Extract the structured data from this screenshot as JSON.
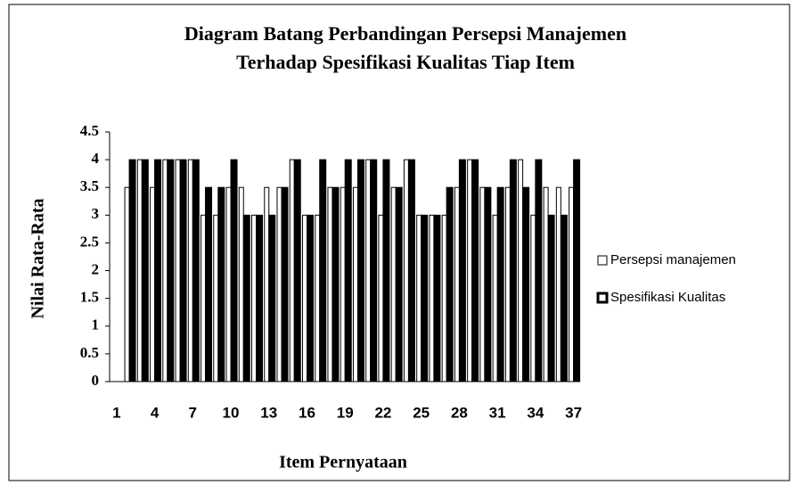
{
  "chart_data": {
    "type": "bar",
    "title": [
      "Diagram Batang Perbandingan Persepsi Manajemen",
      "Terhadap Spesifikasi Kualitas Tiap Item"
    ],
    "y_label": "Nilai Rata-Rata",
    "x_label": "Item Pernyataan",
    "categories": [
      "1",
      null,
      null,
      "4",
      null,
      null,
      "7",
      null,
      null,
      "10",
      null,
      null,
      "13",
      null,
      null,
      "16",
      null,
      null,
      "19",
      null,
      null,
      "22",
      null,
      null,
      "25",
      null,
      null,
      "28",
      null,
      null,
      "31",
      null,
      null,
      "34",
      null,
      null,
      "37"
    ],
    "series": [
      {
        "name": "Persepsi manajemen",
        "color": "#ffffff",
        "values": [
          null,
          3.5,
          4,
          3.5,
          4,
          4,
          4,
          3,
          3,
          3.5,
          3.5,
          3,
          3.5,
          3.5,
          4,
          3,
          3,
          3.5,
          3.5,
          3.5,
          4,
          3,
          3.5,
          4,
          3,
          3,
          3,
          3.5,
          4,
          3.5,
          3,
          3.5,
          4,
          3,
          3.5,
          3.5,
          3.5
        ]
      },
      {
        "name": "Spesifikasi Kualitas",
        "color": "#000000",
        "values": [
          null,
          4,
          4,
          4,
          4,
          4,
          4,
          3.5,
          3.5,
          4,
          3,
          3,
          3,
          3.5,
          4,
          3,
          4,
          3.5,
          4,
          4,
          4,
          4,
          3.5,
          4,
          3,
          3,
          3.5,
          4,
          4,
          3.5,
          3.5,
          4,
          3.5,
          4,
          3,
          3,
          4
        ]
      }
    ],
    "ylim": [
      0,
      4.5
    ],
    "yticks": [
      {
        "value": 0,
        "label": "0"
      },
      0.5,
      1,
      1.5,
      2,
      2.5,
      3,
      3.5,
      4,
      4.5
    ],
    "grid": false,
    "legend": "right"
  }
}
